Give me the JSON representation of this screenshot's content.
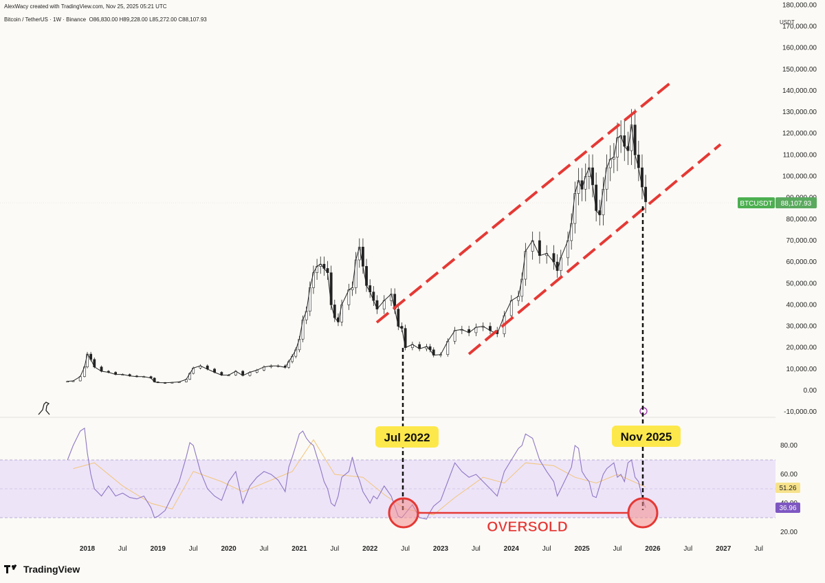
{
  "header": {
    "credit": "AlexWacy created with TradingView.com, Nov 25, 2025 05:21 UTC",
    "symbol_line": "Bitcoin / TetherUS · 1W · Binance",
    "ohlc": "O86,830.00  H89,228.00  L85,272.00  C88,107.93",
    "currency": "USDT"
  },
  "footer": {
    "brand": "TradingView"
  },
  "price_label": {
    "symbol": "BTCUSDT",
    "value": "88,107.93",
    "color": "#4caf50"
  },
  "annotations": {
    "jul2022": "Jul 2022",
    "nov2025": "Nov 2025",
    "oversold": "OVERSOLD"
  },
  "colors": {
    "channel": "#e53935",
    "rsi_band": "#ede4f8",
    "rsi_line": "#8e76c4",
    "rsi_ma": "#f3c57a",
    "callout_bg": "#fde84b",
    "oversold_text": "#e53935",
    "candle": "#222222"
  },
  "chart_data": [
    {
      "type": "line",
      "title": "Bitcoin / TetherUS · 1W · Binance",
      "ylabel": "USDT",
      "ylim": [
        -10000,
        180000
      ],
      "y_ticks": [
        "180,000.00",
        "170,000.00",
        "160,000.00",
        "150,000.00",
        "140,000.00",
        "130,000.00",
        "120,000.00",
        "110,000.00",
        "100,000.00",
        "90,000.00",
        "80,000.00",
        "70,000.00",
        "60,000.00",
        "50,000.00",
        "40,000.00",
        "30,000.00",
        "20,000.00",
        "10,000.00",
        "0.00",
        "-10,000.00"
      ],
      "x_ticks": [
        "2018",
        "Jul",
        "2019",
        "Jul",
        "2020",
        "Jul",
        "2021",
        "Jul",
        "2022",
        "Jul",
        "2023",
        "Jul",
        "2024",
        "Jul",
        "2025",
        "Jul",
        "2026",
        "Jul",
        "2027",
        "Jul"
      ],
      "xlim": [
        2017.75,
        2027.9
      ],
      "series": [
        {
          "name": "BTCUSDT weekly (approx. close)",
          "x": [
            2017.72,
            2017.8,
            2017.9,
            2017.96,
            2018.0,
            2018.05,
            2018.1,
            2018.2,
            2018.3,
            2018.4,
            2018.5,
            2018.6,
            2018.7,
            2018.8,
            2018.9,
            2018.95,
            2019.0,
            2019.1,
            2019.2,
            2019.3,
            2019.4,
            2019.45,
            2019.5,
            2019.6,
            2019.7,
            2019.8,
            2019.9,
            2020.0,
            2020.1,
            2020.2,
            2020.3,
            2020.4,
            2020.5,
            2020.6,
            2020.7,
            2020.8,
            2020.85,
            2020.9,
            2020.95,
            2021.0,
            2021.05,
            2021.1,
            2021.15,
            2021.2,
            2021.25,
            2021.3,
            2021.35,
            2021.4,
            2021.45,
            2021.5,
            2021.55,
            2021.6,
            2021.7,
            2021.75,
            2021.8,
            2021.85,
            2021.9,
            2021.95,
            2022.0,
            2022.05,
            2022.1,
            2022.2,
            2022.3,
            2022.35,
            2022.4,
            2022.45,
            2022.5,
            2022.6,
            2022.7,
            2022.8,
            2022.85,
            2022.9,
            2023.0,
            2023.1,
            2023.2,
            2023.3,
            2023.4,
            2023.5,
            2023.6,
            2023.7,
            2023.8,
            2023.9,
            2024.0,
            2024.1,
            2024.15,
            2024.2,
            2024.3,
            2024.4,
            2024.5,
            2024.6,
            2024.65,
            2024.7,
            2024.8,
            2024.85,
            2024.9,
            2024.95,
            2025.0,
            2025.05,
            2025.1,
            2025.15,
            2025.2,
            2025.25,
            2025.3,
            2025.35,
            2025.4,
            2025.45,
            2025.5,
            2025.55,
            2025.6,
            2025.65,
            2025.7,
            2025.75,
            2025.8,
            2025.85,
            2025.9
          ],
          "values": [
            4300,
            4500,
            6500,
            11000,
            17000,
            14500,
            11000,
            9000,
            8500,
            7500,
            7500,
            6800,
            6500,
            6500,
            5800,
            4000,
            3700,
            3600,
            3800,
            4000,
            5200,
            8000,
            10500,
            11500,
            10000,
            8500,
            7200,
            7200,
            9000,
            7000,
            8500,
            9500,
            11000,
            11500,
            11500,
            10800,
            13500,
            16000,
            19000,
            24000,
            33000,
            37000,
            48000,
            55000,
            58000,
            59000,
            57000,
            55000,
            40000,
            34000,
            32000,
            40000,
            47000,
            48000,
            61000,
            67000,
            58000,
            49000,
            46000,
            42000,
            38000,
            42000,
            45000,
            38000,
            30000,
            29000,
            20000,
            21500,
            19500,
            20500,
            19000,
            16500,
            16800,
            23000,
            28000,
            28500,
            27000,
            29500,
            30000,
            28000,
            26500,
            35000,
            42000,
            44000,
            52000,
            65000,
            70000,
            63000,
            64000,
            60000,
            56000,
            62000,
            70000,
            78000,
            92000,
            98000,
            94000,
            100000,
            104000,
            96000,
            84000,
            82000,
            94000,
            104000,
            108000,
            109000,
            118000,
            119000,
            114000,
            112000,
            124000,
            110000,
            104000,
            95000,
            88108
          ]
        }
      ],
      "last_price": 88107.93,
      "annotations": [
        "Ascending channel (red dashed lines)",
        "Jul 2022 marker",
        "Nov 2025 marker"
      ]
    },
    {
      "type": "line",
      "title": "RSI",
      "ylim": [
        14,
        96
      ],
      "y_ticks": [
        "80.00",
        "60.00",
        "40.00",
        "20.00"
      ],
      "band": [
        30,
        70
      ],
      "midline": 50,
      "current_labels": [
        "51.26",
        "36.96"
      ],
      "series": [
        {
          "name": "RSI",
          "x": [
            2017.72,
            2017.8,
            2017.9,
            2017.96,
            2018.0,
            2018.05,
            2018.1,
            2018.2,
            2018.3,
            2018.4,
            2018.5,
            2018.6,
            2018.7,
            2018.8,
            2018.9,
            2018.95,
            2019.0,
            2019.1,
            2019.2,
            2019.3,
            2019.4,
            2019.45,
            2019.5,
            2019.6,
            2019.7,
            2019.8,
            2019.9,
            2020.0,
            2020.1,
            2020.2,
            2020.3,
            2020.4,
            2020.5,
            2020.6,
            2020.7,
            2020.8,
            2020.85,
            2020.9,
            2020.95,
            2021.0,
            2021.05,
            2021.1,
            2021.15,
            2021.2,
            2021.25,
            2021.3,
            2021.35,
            2021.4,
            2021.45,
            2021.5,
            2021.55,
            2021.6,
            2021.7,
            2021.75,
            2021.8,
            2021.85,
            2021.9,
            2021.95,
            2022.0,
            2022.05,
            2022.1,
            2022.2,
            2022.3,
            2022.35,
            2022.4,
            2022.45,
            2022.5,
            2022.6,
            2022.7,
            2022.8,
            2022.85,
            2022.9,
            2023.0,
            2023.1,
            2023.2,
            2023.3,
            2023.4,
            2023.5,
            2023.6,
            2023.7,
            2023.8,
            2023.9,
            2024.0,
            2024.1,
            2024.15,
            2024.2,
            2024.3,
            2024.4,
            2024.5,
            2024.6,
            2024.65,
            2024.7,
            2024.8,
            2024.85,
            2024.9,
            2024.95,
            2025.0,
            2025.05,
            2025.1,
            2025.15,
            2025.2,
            2025.25,
            2025.3,
            2025.35,
            2025.4,
            2025.45,
            2025.5,
            2025.55,
            2025.6,
            2025.65,
            2025.7,
            2025.75,
            2025.8,
            2025.85,
            2025.9
          ],
          "values": [
            70,
            80,
            90,
            92,
            75,
            60,
            50,
            45,
            52,
            45,
            47,
            44,
            43,
            45,
            37,
            30,
            31,
            35,
            45,
            55,
            72,
            82,
            80,
            62,
            50,
            45,
            42,
            55,
            62,
            40,
            52,
            58,
            62,
            60,
            56,
            48,
            65,
            72,
            80,
            88,
            90,
            85,
            82,
            80,
            72,
            64,
            55,
            50,
            40,
            38,
            45,
            58,
            62,
            72,
            62,
            56,
            48,
            44,
            40,
            45,
            43,
            52,
            45,
            38,
            31,
            30,
            33,
            39,
            30,
            29,
            34,
            38,
            42,
            55,
            68,
            62,
            58,
            60,
            55,
            50,
            45,
            62,
            70,
            78,
            80,
            88,
            85,
            70,
            62,
            55,
            45,
            50,
            60,
            65,
            80,
            78,
            62,
            58,
            55,
            45,
            44,
            52,
            60,
            64,
            66,
            68,
            58,
            60,
            55,
            68,
            70,
            58,
            55,
            44,
            36.96
          ]
        },
        {
          "name": "RSI-based MA",
          "x": [
            2017.8,
            2018.1,
            2018.5,
            2018.9,
            2019.2,
            2019.5,
            2019.9,
            2020.2,
            2020.6,
            2020.9,
            2021.2,
            2021.5,
            2021.9,
            2022.2,
            2022.5,
            2022.9,
            2023.2,
            2023.6,
            2023.9,
            2024.2,
            2024.6,
            2024.9,
            2025.2,
            2025.5,
            2025.9
          ],
          "values": [
            64,
            68,
            52,
            40,
            36,
            62,
            55,
            48,
            56,
            62,
            84,
            60,
            58,
            46,
            36,
            32,
            44,
            58,
            54,
            68,
            66,
            58,
            54,
            60,
            51.26
          ]
        }
      ],
      "annotations": [
        "OVERSOLD"
      ]
    }
  ]
}
